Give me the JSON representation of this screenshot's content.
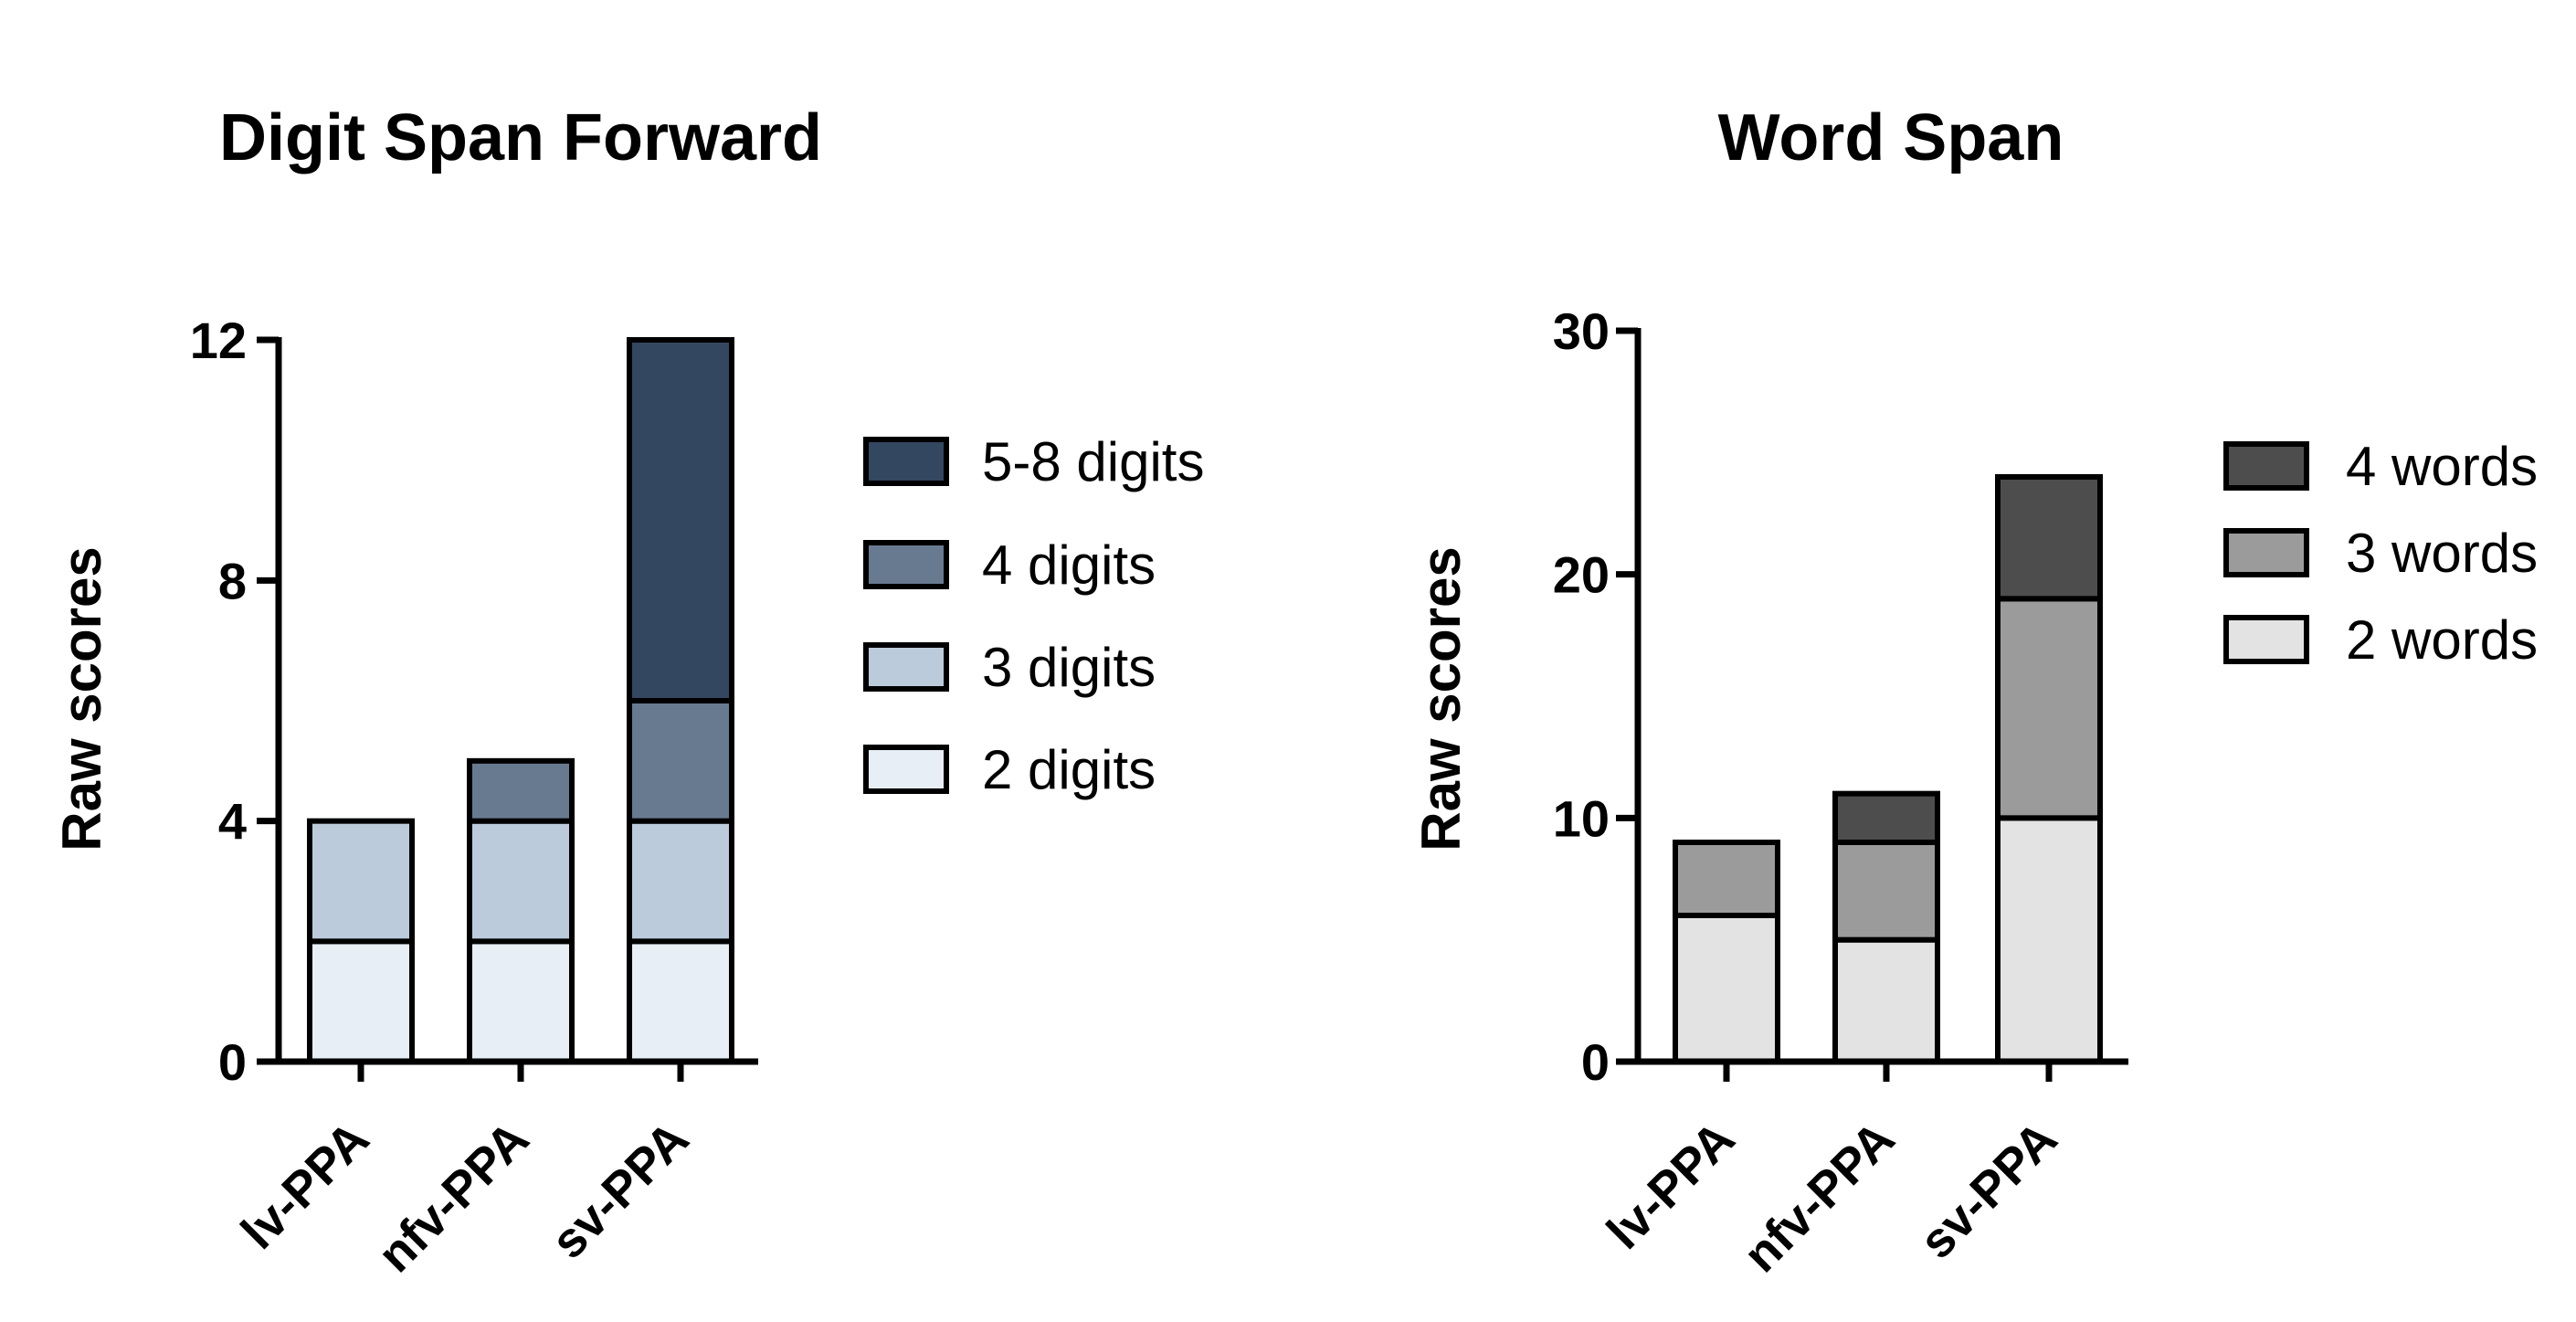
{
  "chart_data": [
    {
      "type": "bar",
      "stacked": true,
      "title": "Digit Span Forward",
      "xlabel": "",
      "ylabel": "Raw scores",
      "categories": [
        "lv-PPA",
        "nfv-PPA",
        "sv-PPA"
      ],
      "ylim": [
        0,
        12
      ],
      "yticks": [
        0,
        4,
        8,
        12
      ],
      "grid": false,
      "legend_position": "right",
      "series": [
        {
          "name": "2 digits",
          "values": [
            2,
            2,
            2
          ],
          "color": "#e8eef5"
        },
        {
          "name": "3 digits",
          "values": [
            2,
            2,
            2
          ],
          "color": "#bccbdc"
        },
        {
          "name": "4 digits",
          "values": [
            0,
            1,
            2
          ],
          "color": "#687a90"
        },
        {
          "name": "5-8 digits",
          "values": [
            0,
            0,
            6
          ],
          "color": "#344760"
        }
      ]
    },
    {
      "type": "bar",
      "stacked": true,
      "title": "Word Span",
      "xlabel": "",
      "ylabel": "Raw scores",
      "categories": [
        "lv-PPA",
        "nfv-PPA",
        "sv-PPA"
      ],
      "ylim": [
        0,
        30
      ],
      "yticks": [
        0,
        10,
        20,
        30
      ],
      "grid": false,
      "legend_position": "right",
      "series": [
        {
          "name": "2 words",
          "values": [
            6,
            5,
            10
          ],
          "color": "#e3e3e3"
        },
        {
          "name": "3 words",
          "values": [
            3,
            4,
            9
          ],
          "color": "#9b9b9b"
        },
        {
          "name": "4 words",
          "values": [
            0,
            2,
            5
          ],
          "color": "#4d4d4d"
        }
      ]
    }
  ]
}
